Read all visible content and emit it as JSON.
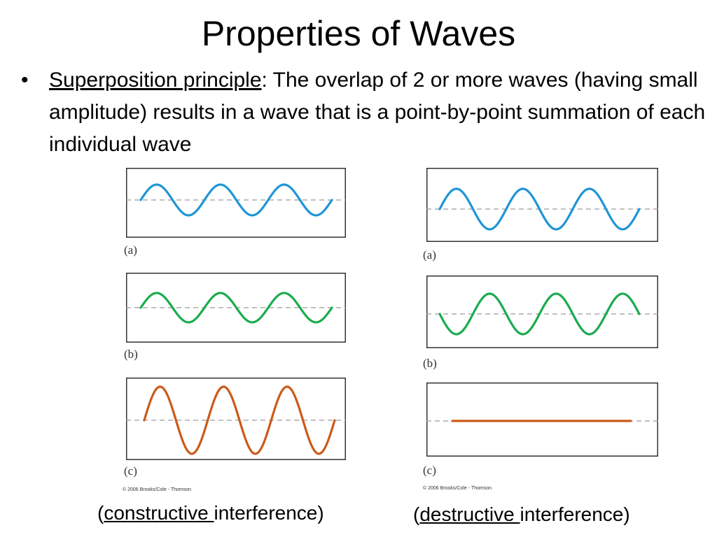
{
  "slide": {
    "title": "Properties of Waves",
    "bullet": {
      "marker": "•",
      "term": "Superposition principle",
      "text": ": The overlap of 2 or more waves (having small amplitude) results in a wave that is a point-by-point summation of each individual wave"
    }
  },
  "left_figure": {
    "panels": [
      {
        "label": "(a)",
        "color": "#1f95d6",
        "amplitude": 1,
        "phase": "in-phase"
      },
      {
        "label": "(b)",
        "color": "#1aac4e",
        "amplitude": 1,
        "phase": "in-phase"
      },
      {
        "label": "(c)",
        "color": "#cc5a1a",
        "amplitude": 2,
        "phase": "sum"
      }
    ],
    "copyright": "© 2006 Brooks/Cole - Thomson",
    "caption": {
      "open": "(",
      "term": "constructive ",
      "rest": "interference)"
    }
  },
  "right_figure": {
    "panels": [
      {
        "label": "(a)",
        "color": "#1f95d6",
        "amplitude": 1,
        "phase": "in-phase"
      },
      {
        "label": "(b)",
        "color": "#1aac4e",
        "amplitude": 1,
        "phase": "inverted"
      },
      {
        "label": "(c)",
        "color": "#cc5a1a",
        "amplitude": 0,
        "phase": "sum"
      }
    ],
    "copyright": "© 2006 Brooks/Cole - Thomson",
    "caption": {
      "open": "(",
      "term": "destructive ",
      "rest": "interference)"
    }
  },
  "colors": {
    "dashed_axis": "#9a9a9a",
    "panel_border": "#333333"
  }
}
